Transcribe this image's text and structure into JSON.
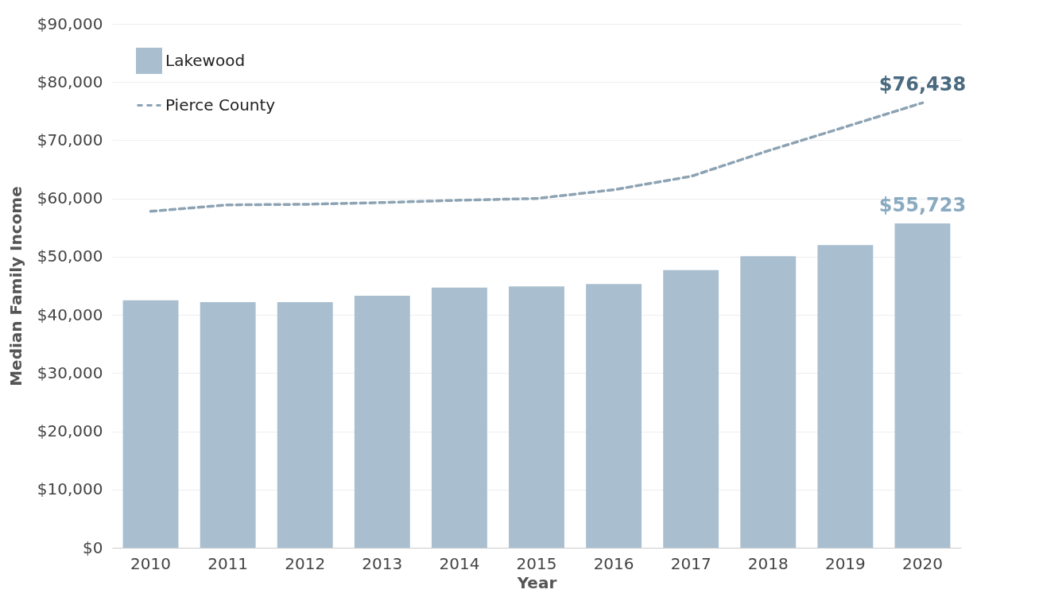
{
  "chart_data": {
    "type": "bar",
    "xlabel": "Year",
    "ylabel": "Median Family Income",
    "categories": [
      "2010",
      "2011",
      "2012",
      "2013",
      "2014",
      "2015",
      "2016",
      "2017",
      "2018",
      "2019",
      "2020"
    ],
    "series": [
      {
        "name": "Lakewood",
        "color": "#a9bfcf",
        "values": [
          42500,
          42200,
          42200,
          43300,
          44700,
          44900,
          45300,
          47700,
          50100,
          52000,
          55723
        ],
        "value_labels": [
          null,
          null,
          null,
          null,
          null,
          null,
          null,
          null,
          null,
          null,
          "$55,723"
        ]
      },
      {
        "name": "Pierce County",
        "type": "line",
        "color": "#8da3b3",
        "line_style": "dashed",
        "values": [
          57800,
          58900,
          59000,
          59300,
          59700,
          60000,
          61500,
          63800,
          68200,
          72300,
          76438
        ],
        "value_labels": [
          null,
          null,
          null,
          null,
          null,
          null,
          null,
          null,
          null,
          null,
          "$76,438"
        ]
      }
    ],
    "ylim": [
      0,
      90000
    ],
    "yticks": [
      {
        "value": 0,
        "label": "$0"
      },
      {
        "value": 10000,
        "label": "$10,000"
      },
      {
        "value": 20000,
        "label": "$20,000"
      },
      {
        "value": 30000,
        "label": "$30,000"
      },
      {
        "value": 40000,
        "label": "$40,000"
      },
      {
        "value": 50000,
        "label": "$50,000"
      },
      {
        "value": 60000,
        "label": "$60,000"
      },
      {
        "value": 70000,
        "label": "$70,000"
      },
      {
        "value": 80000,
        "label": "$80,000"
      },
      {
        "value": 90000,
        "label": "$90,000"
      }
    ],
    "grid": "y",
    "legend": "top left"
  }
}
